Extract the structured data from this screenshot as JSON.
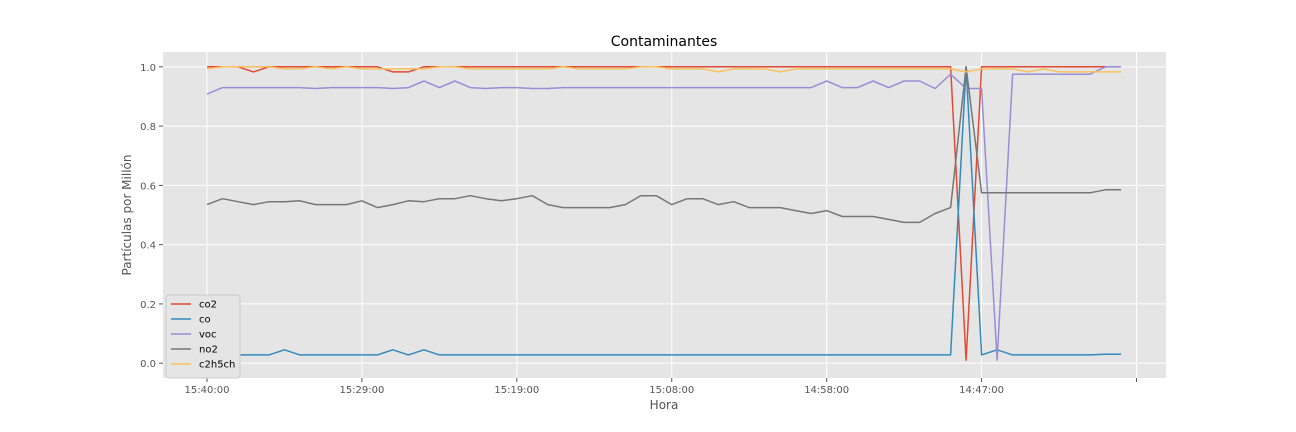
{
  "chart_data": {
    "type": "line",
    "title": "Contaminantes",
    "xlabel": "Hora",
    "ylabel": "Partículas por Millón",
    "ylim": [
      -0.05,
      1.05
    ],
    "yticks": [
      0.0,
      0.2,
      0.4,
      0.6,
      0.8,
      1.0
    ],
    "ytick_labels": [
      "0.0",
      "0.2",
      "0.4",
      "0.6",
      "0.8",
      "1.0"
    ],
    "xtick_labels": [
      {
        "index": 0,
        "label": "15:40:00"
      },
      {
        "index": 10,
        "label": "15:29:00"
      },
      {
        "index": 20,
        "label": "15:19:00"
      },
      {
        "index": 30,
        "label": "15:08:00"
      },
      {
        "index": 40,
        "label": "14:58:00"
      },
      {
        "index": 50,
        "label": "14:47:00"
      },
      {
        "index": 60,
        "label": ""
      }
    ],
    "n_points": 60,
    "grid": true,
    "legend_position": "lower-left",
    "background": "#e5e5e5",
    "series": [
      {
        "name": "co2",
        "color": "#e24a33",
        "values": [
          1,
          1,
          1,
          0.983,
          1,
          1,
          1,
          1,
          1,
          1,
          1,
          1,
          0.983,
          0.983,
          1,
          1,
          1,
          1,
          1,
          1,
          1,
          1,
          1,
          1,
          1,
          1,
          1,
          1,
          1,
          1,
          1,
          1,
          1,
          1,
          1,
          1,
          1,
          1,
          1,
          1,
          1,
          1,
          1,
          1,
          1,
          1,
          1,
          1,
          1,
          0.01,
          1,
          1,
          1,
          1,
          1,
          1,
          1,
          1,
          1,
          1
        ]
      },
      {
        "name": "co",
        "color": "#348abd",
        "values": [
          0.028,
          0.028,
          0.028,
          0.028,
          0.028,
          0.045,
          0.028,
          0.028,
          0.028,
          0.028,
          0.028,
          0.028,
          0.045,
          0.028,
          0.045,
          0.028,
          0.028,
          0.028,
          0.028,
          0.028,
          0.028,
          0.028,
          0.028,
          0.028,
          0.028,
          0.028,
          0.028,
          0.028,
          0.028,
          0.028,
          0.028,
          0.028,
          0.028,
          0.028,
          0.028,
          0.028,
          0.028,
          0.028,
          0.028,
          0.028,
          0.028,
          0.028,
          0.028,
          0.028,
          0.028,
          0.028,
          0.028,
          0.028,
          0.028,
          1,
          0.028,
          0.045,
          0.028,
          0.028,
          0.028,
          0.028,
          0.028,
          0.028,
          0.03,
          0.03
        ]
      },
      {
        "name": "voc",
        "color": "#988ed5",
        "values": [
          0.908,
          0.93,
          0.93,
          0.93,
          0.93,
          0.93,
          0.93,
          0.927,
          0.93,
          0.93,
          0.93,
          0.93,
          0.927,
          0.93,
          0.952,
          0.93,
          0.952,
          0.93,
          0.927,
          0.93,
          0.93,
          0.927,
          0.927,
          0.93,
          0.93,
          0.93,
          0.93,
          0.93,
          0.93,
          0.93,
          0.93,
          0.93,
          0.93,
          0.93,
          0.93,
          0.93,
          0.93,
          0.93,
          0.93,
          0.93,
          0.952,
          0.93,
          0.93,
          0.952,
          0.93,
          0.952,
          0.952,
          0.927,
          0.975,
          0.927,
          0.927,
          0.01,
          0.975,
          0.975,
          0.975,
          0.975,
          0.975,
          0.975,
          1,
          1
        ]
      },
      {
        "name": "no2",
        "color": "#777777",
        "values": [
          0.535,
          0.555,
          0.545,
          0.535,
          0.545,
          0.545,
          0.548,
          0.535,
          0.535,
          0.535,
          0.548,
          0.525,
          0.535,
          0.548,
          0.545,
          0.555,
          0.555,
          0.565,
          0.555,
          0.548,
          0.555,
          0.565,
          0.535,
          0.525,
          0.525,
          0.525,
          0.525,
          0.535,
          0.565,
          0.565,
          0.535,
          0.555,
          0.555,
          0.535,
          0.545,
          0.525,
          0.525,
          0.525,
          0.515,
          0.505,
          0.515,
          0.495,
          0.495,
          0.495,
          0.485,
          0.475,
          0.475,
          0.505,
          0.525,
          1,
          0.575,
          0.575,
          0.575,
          0.575,
          0.575,
          0.575,
          0.575,
          0.575,
          0.585,
          0.585
        ]
      },
      {
        "name": "c2h5ch",
        "color": "#fbc15e",
        "values": [
          0.993,
          1,
          1,
          1,
          1,
          0.993,
          0.993,
          1,
          0.993,
          1,
          0.993,
          0.993,
          0.993,
          0.993,
          0.993,
          1,
          1,
          0.993,
          0.993,
          0.993,
          0.993,
          0.993,
          0.993,
          1,
          0.993,
          0.993,
          0.993,
          0.993,
          1,
          1,
          0.993,
          0.993,
          0.993,
          0.983,
          0.993,
          0.993,
          0.993,
          0.983,
          0.993,
          0.993,
          0.993,
          0.993,
          0.993,
          0.993,
          0.993,
          0.993,
          0.993,
          0.993,
          0.993,
          0.983,
          0.993,
          0.993,
          0.993,
          0.983,
          0.993,
          0.983,
          0.983,
          0.983,
          0.983,
          0.983
        ]
      }
    ]
  }
}
